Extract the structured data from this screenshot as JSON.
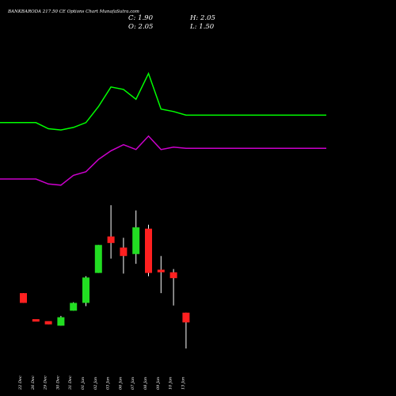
{
  "header": {
    "title": "BANKBARODA 217.50 CE Options Chart MunafaSutra.com",
    "close": "C: 1.90",
    "open": "O: 2.05",
    "high": "H: 2.05",
    "low": "L: 1.50"
  },
  "chart_data": {
    "type": "candlestick",
    "title": "BANKBARODA 217.50 CE Options Chart MunafaSutra.com",
    "categories": [
      "22 Dec",
      "26 Dec",
      "29 Dec",
      "30 Dec",
      "31 Dec",
      "01 Jan",
      "02 Jan",
      "03 Jan",
      "06 Jan",
      "07 Jan",
      "08 Jan",
      "09 Jan",
      "10 Jan",
      "13 Jan"
    ],
    "candles": [
      {
        "open": 2.35,
        "high": 2.35,
        "low": 2.2,
        "close": 2.2,
        "color": "#ff2020"
      },
      {
        "open": 1.95,
        "high": 1.95,
        "low": 1.92,
        "close": 1.92,
        "color": "#ff2020"
      },
      {
        "open": 1.92,
        "high": 1.92,
        "low": 1.87,
        "close": 1.87,
        "color": "#ff2020"
      },
      {
        "open": 1.85,
        "high": 2.0,
        "low": 1.85,
        "close": 1.98,
        "color": "#22dd22"
      },
      {
        "open": 2.08,
        "high": 2.21,
        "low": 2.08,
        "close": 2.2,
        "color": "#22dd22"
      },
      {
        "open": 2.2,
        "high": 2.61,
        "low": 2.15,
        "close": 2.59,
        "color": "#22dd22"
      },
      {
        "open": 2.66,
        "high": 3.09,
        "low": 2.66,
        "close": 3.09,
        "color": "#22dd22"
      },
      {
        "open": 3.22,
        "high": 3.7,
        "low": 2.88,
        "close": 3.12,
        "color": "#ff2020"
      },
      {
        "open": 3.05,
        "high": 3.2,
        "low": 2.65,
        "close": 2.92,
        "color": "#ff2020"
      },
      {
        "open": 2.95,
        "high": 3.62,
        "low": 2.8,
        "close": 3.36,
        "color": "#22dd22"
      },
      {
        "open": 3.34,
        "high": 3.4,
        "low": 2.61,
        "close": 2.66,
        "color": "#ff2020"
      },
      {
        "open": 2.71,
        "high": 2.92,
        "low": 2.35,
        "close": 2.67,
        "color": "#ff2020"
      },
      {
        "open": 2.67,
        "high": 2.72,
        "low": 2.16,
        "close": 2.58,
        "color": "#ff2020"
      },
      {
        "open": 2.05,
        "high": 2.05,
        "low": 1.5,
        "close": 1.9,
        "color": "#ff2020"
      }
    ],
    "bands": [
      {
        "color": "#00ff00",
        "values": [
          15.5,
          15.5,
          15.0,
          14.9,
          15.1,
          15.5,
          16.8,
          18.4,
          18.2,
          17.4,
          19.5,
          16.6,
          16.4,
          16.1
        ]
      },
      {
        "color": "#cc00cc",
        "values": [
          10.9,
          10.9,
          10.5,
          10.4,
          11.2,
          11.5,
          12.5,
          13.2,
          13.7,
          13.3,
          14.4,
          13.3,
          13.5,
          13.4
        ]
      }
    ],
    "grid": false,
    "legend": "none"
  }
}
